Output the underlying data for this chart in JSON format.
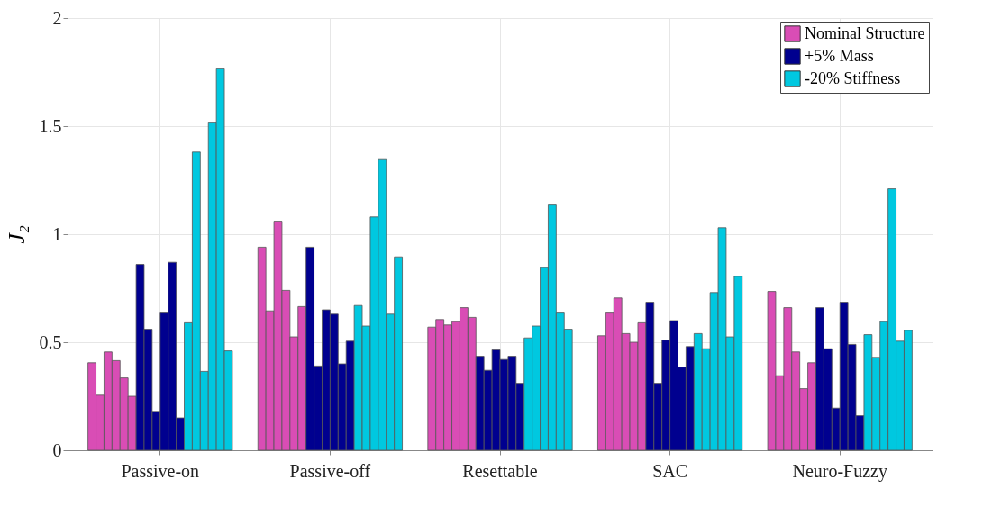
{
  "chart_data": {
    "type": "bar",
    "ylabel": "J₂",
    "categories": [
      "Passive-on",
      "Passive-off",
      "Resettable",
      "SAC",
      "Neuro-Fuzzy"
    ],
    "ylim": [
      0,
      2
    ],
    "yticks": [
      0,
      0.5,
      1,
      1.5,
      2
    ],
    "grid": true,
    "legend": "top right",
    "series": [
      {
        "name": "Nominal Structure",
        "color": "#d94db5",
        "values": [
          0.405,
          0.94,
          0.57,
          0.53,
          0.735
        ]
      },
      {
        "color": "#d94db5",
        "values": [
          0.255,
          0.645,
          0.605,
          0.635,
          0.345
        ]
      },
      {
        "color": "#d94db5",
        "values": [
          0.455,
          1.06,
          0.58,
          0.705,
          0.66
        ]
      },
      {
        "color": "#d94db5",
        "values": [
          0.415,
          0.74,
          0.595,
          0.54,
          0.455
        ]
      },
      {
        "color": "#d94db5",
        "values": [
          0.335,
          0.525,
          0.66,
          0.5,
          0.285
        ]
      },
      {
        "color": "#d94db5",
        "values": [
          0.25,
          0.665,
          0.615,
          0.59,
          0.405
        ]
      },
      {
        "name": "+5% Mass",
        "color": "#00008f",
        "values": [
          0.86,
          0.94,
          0.435,
          0.685,
          0.66
        ]
      },
      {
        "color": "#00008f",
        "values": [
          0.56,
          0.39,
          0.37,
          0.31,
          0.47
        ]
      },
      {
        "color": "#00008f",
        "values": [
          0.18,
          0.65,
          0.465,
          0.51,
          0.195
        ]
      },
      {
        "color": "#00008f",
        "values": [
          0.635,
          0.63,
          0.42,
          0.6,
          0.685
        ]
      },
      {
        "color": "#00008f",
        "values": [
          0.87,
          0.4,
          0.435,
          0.385,
          0.49
        ]
      },
      {
        "color": "#00008f",
        "values": [
          0.15,
          0.505,
          0.31,
          0.48,
          0.16
        ]
      },
      {
        "name": "-20% Stiffness",
        "color": "#00c8e0",
        "values": [
          0.59,
          0.67,
          0.52,
          0.54,
          0.535
        ]
      },
      {
        "color": "#00c8e0",
        "values": [
          1.38,
          0.575,
          0.575,
          0.47,
          0.43
        ]
      },
      {
        "color": "#00c8e0",
        "values": [
          0.365,
          1.08,
          0.845,
          0.73,
          0.595
        ]
      },
      {
        "color": "#00c8e0",
        "values": [
          1.515,
          1.345,
          1.135,
          1.03,
          1.21
        ]
      },
      {
        "color": "#00c8e0",
        "values": [
          1.765,
          0.63,
          0.635,
          0.525,
          0.505
        ]
      },
      {
        "color": "#00c8e0",
        "values": [
          0.46,
          0.895,
          0.56,
          0.805,
          0.555
        ]
      }
    ]
  }
}
